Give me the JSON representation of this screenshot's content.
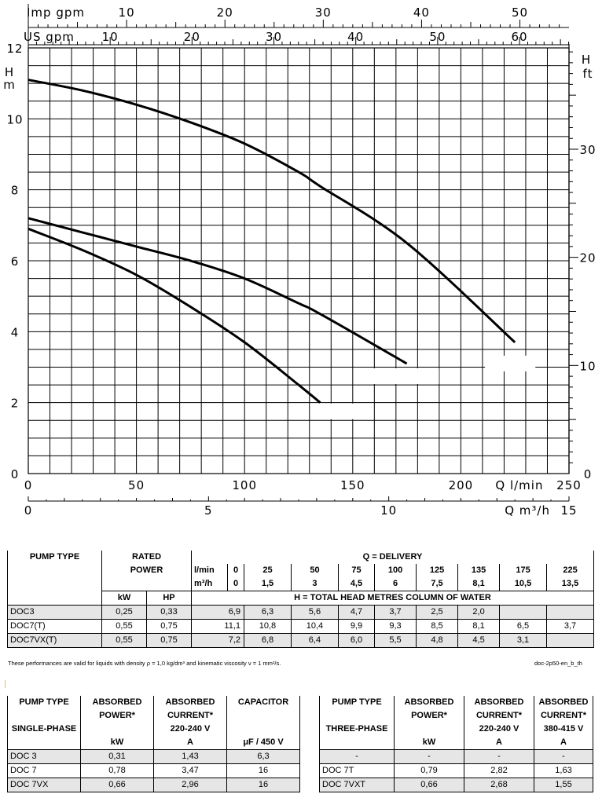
{
  "chart_data": {
    "type": "line",
    "top_axes": [
      {
        "label": "Imp gpm",
        "ticks": [
          "10",
          "20",
          "30",
          "40",
          "50"
        ],
        "values": [
          10,
          20,
          30,
          40,
          50
        ]
      },
      {
        "label": "US gpm",
        "ticks": [
          "10",
          "20",
          "30",
          "40",
          "50",
          "60"
        ],
        "values": [
          10,
          20,
          30,
          40,
          50,
          60
        ]
      }
    ],
    "ylabel_left": [
      "H",
      "m"
    ],
    "ylabel_right": [
      "H",
      "ft"
    ],
    "yticks_left": [
      "0",
      "2",
      "4",
      "6",
      "8",
      "10",
      "12"
    ],
    "yticks_right": [
      "0",
      "10",
      "20",
      "30"
    ],
    "xticks_lmin": [
      "0",
      "50",
      "100",
      "150",
      "200",
      "250"
    ],
    "xlabel_lmin": "Q l/min",
    "xticks_m3h": [
      "0",
      "5",
      "10",
      "15"
    ],
    "xlabel_m3h": "Q m³/h",
    "xlim": [
      0,
      250
    ],
    "ylim": [
      0,
      12
    ],
    "grid": true,
    "series": [
      {
        "name": "DOC 7",
        "x": [
          0,
          25,
          50,
          75,
          100,
          125,
          135,
          175,
          225
        ],
        "y": [
          11.1,
          10.8,
          10.4,
          9.9,
          9.3,
          8.5,
          8.1,
          6.5,
          3.7
        ]
      },
      {
        "name": "DOC 7 VX",
        "x": [
          0,
          25,
          50,
          75,
          100,
          125,
          135,
          175
        ],
        "y": [
          7.2,
          6.8,
          6.4,
          6.0,
          5.5,
          4.8,
          4.5,
          3.1
        ]
      },
      {
        "name": "DOC 3",
        "x": [
          0,
          25,
          50,
          75,
          100,
          125,
          135
        ],
        "y": [
          6.9,
          6.3,
          5.6,
          4.7,
          3.7,
          2.5,
          2.0
        ]
      }
    ]
  },
  "table1": {
    "pump_type": "PUMP TYPE",
    "rated_1": "RATED",
    "rated_2": "POWER",
    "q_delivery": "Q = DELIVERY",
    "lmin": "l/min",
    "m3h": "m³/h",
    "kw": "kW",
    "hp": "HP",
    "head": "H = TOTAL HEAD METRES COLUMN OF WATER",
    "lmin_values": [
      "0",
      "25",
      "50",
      "75",
      "100",
      "125",
      "135",
      "175",
      "225"
    ],
    "m3h_values": [
      "0",
      "1,5",
      "3",
      "4,5",
      "6",
      "7,5",
      "8,1",
      "10,5",
      "13,5"
    ],
    "rows": [
      {
        "name": "DOC3",
        "kw": "0,25",
        "hp": "0,33",
        "h": [
          "6,9",
          "6,3",
          "5,6",
          "4,7",
          "3,7",
          "2,5",
          "2,0",
          "",
          ""
        ]
      },
      {
        "name": "DOC7(T)",
        "kw": "0,55",
        "hp": "0,75",
        "h": [
          "11,1",
          "10,8",
          "10,4",
          "9,9",
          "9,3",
          "8,5",
          "8,1",
          "6,5",
          "3,7"
        ]
      },
      {
        "name": "DOC7VX(T)",
        "kw": "0,55",
        "hp": "0,75",
        "h": [
          "7,2",
          "6,8",
          "6,4",
          "6,0",
          "5,5",
          "4,8",
          "4,5",
          "3,1",
          ""
        ]
      }
    ]
  },
  "note": "These performances are valid for liquids with density ρ = 1,0 kg/dm³ and kinematic viscosity ν = 1 mm²/s.",
  "doc_code": "doc-2p50-en_b_th",
  "table2": {
    "pump_type": "PUMP TYPE",
    "absorbed": "ABSORBED",
    "power": "POWER*",
    "current": "CURRENT*",
    "capacitor": "CAPACITOR",
    "single_phase": "SINGLE-PHASE",
    "v": "220-240 V",
    "kw": "kW",
    "a": "A",
    "uf": "μF / 450 V",
    "rows": [
      {
        "name": "DOC 3",
        "p": "0,31",
        "c": "1,43",
        "cap": "6,3"
      },
      {
        "name": "DOC 7",
        "p": "0,78",
        "c": "3,47",
        "cap": "16"
      },
      {
        "name": "DOC 7VX",
        "p": "0,66",
        "c": "2,96",
        "cap": "16"
      }
    ]
  },
  "table3": {
    "pump_type": "PUMP TYPE",
    "absorbed": "ABSORBED",
    "power": "POWER*",
    "current": "CURRENT*",
    "three_phase": "THREE-PHASE",
    "v1": "220-240 V",
    "v2": "380-415 V",
    "kw": "kW",
    "a": "A",
    "rows": [
      {
        "name": "-",
        "p": "-",
        "c1": "-",
        "c2": "-"
      },
      {
        "name": "DOC 7T",
        "p": "0,79",
        "c1": "2,82",
        "c2": "1,63"
      },
      {
        "name": "DOC  7VXT",
        "p": "0,66",
        "c1": "2,68",
        "c2": "1,55"
      }
    ]
  }
}
